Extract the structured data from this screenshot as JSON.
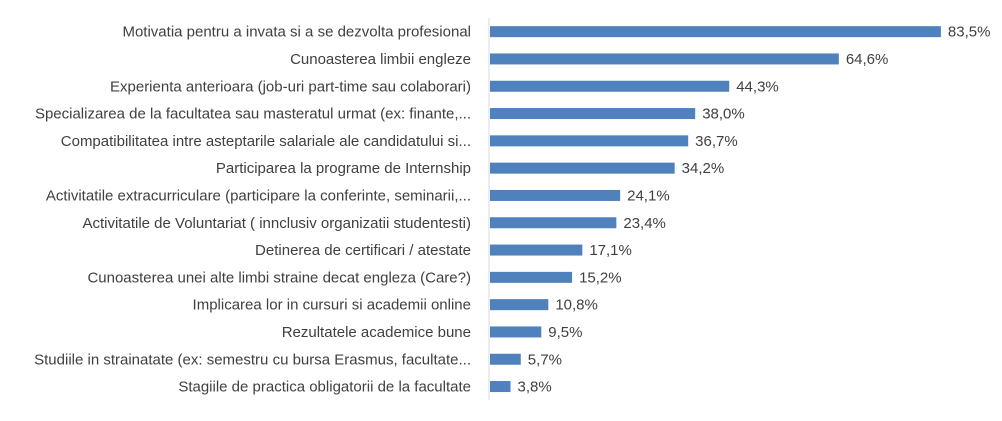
{
  "chart_data": {
    "type": "bar",
    "orientation": "horizontal",
    "categories": [
      "Motivatia pentru a invata si a se dezvolta profesional",
      "Cunoasterea limbii engleze",
      "Experienta anterioara (job-uri part-time sau colaborari)",
      "Specializarea de la facultatea sau masteratul urmat (ex: finante,...",
      "Compatibilitatea intre asteptarile salariale ale candidatului si...",
      "Participarea la programe de Internship",
      "Activitatile extracurriculare (participare la conferinte, seminarii,...",
      "Activitatile de Voluntariat ( innclusiv organizatii studentesti)",
      "Detinerea de certificari / atestate",
      "Cunoasterea unei alte limbi straine decat engleza (Care?)",
      "Implicarea lor in cursuri si academii online",
      "Rezultatele academice bune",
      "Studiile in strainatate (ex: semestru cu bursa Erasmus, facultate...",
      "Stagiile de practica obligatorii de la facultate"
    ],
    "values": [
      83.5,
      64.6,
      44.3,
      38.0,
      36.7,
      34.2,
      24.1,
      23.4,
      17.1,
      15.2,
      10.8,
      9.5,
      5.7,
      3.8
    ],
    "value_labels": [
      "83,5%",
      "64,6%",
      "44,3%",
      "38,0%",
      "36,7%",
      "34,2%",
      "24,1%",
      "23,4%",
      "17,1%",
      "15,2%",
      "10,8%",
      "9,5%",
      "5,7%",
      "3,8%"
    ],
    "xlim": [
      0,
      85
    ],
    "title": "",
    "xlabel": "",
    "ylabel": "",
    "grid": false,
    "legend": "none",
    "bar_color": "#4F81BD",
    "axis_color": "#D9D9D9",
    "text_color": "#404040"
  }
}
